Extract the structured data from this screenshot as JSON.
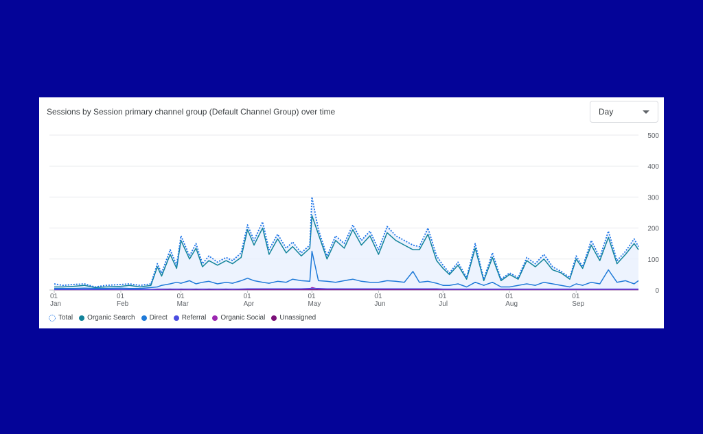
{
  "card": {
    "title": "Sessions by Session primary channel group (Default Channel Group) over time"
  },
  "dropdown": {
    "value": "Day"
  },
  "legend": [
    {
      "label": "Total",
      "color": "#1a73e8",
      "style": "dotted"
    },
    {
      "label": "Organic Search",
      "color": "#12839a",
      "style": "solid"
    },
    {
      "label": "Direct",
      "color": "#1f7ad8",
      "style": "solid"
    },
    {
      "label": "Referral",
      "color": "#4a4de0",
      "style": "solid"
    },
    {
      "label": "Organic Social",
      "color": "#9c27b0",
      "style": "solid"
    },
    {
      "label": "Unassigned",
      "color": "#7b1078",
      "style": "solid"
    }
  ],
  "chart_data": {
    "type": "line",
    "title": "Sessions by Session primary channel group (Default Channel Group) over time",
    "xlabel": "",
    "ylabel": "",
    "ylim": [
      0,
      500
    ],
    "y_ticks": [
      0,
      100,
      200,
      300,
      400,
      500
    ],
    "x_ticks": [
      {
        "day": "01",
        "month": "Jan",
        "date": "2023-01-01"
      },
      {
        "day": "01",
        "month": "Feb",
        "date": "2023-02-01"
      },
      {
        "day": "01",
        "month": "Mar",
        "date": "2023-03-01"
      },
      {
        "day": "01",
        "month": "Apr",
        "date": "2023-04-01"
      },
      {
        "day": "01",
        "month": "May",
        "date": "2023-05-01"
      },
      {
        "day": "01",
        "month": "Jun",
        "date": "2023-06-01"
      },
      {
        "day": "01",
        "month": "Jul",
        "date": "2023-07-01"
      },
      {
        "day": "01",
        "month": "Aug",
        "date": "2023-08-01"
      },
      {
        "day": "01",
        "month": "Sep",
        "date": "2023-09-01"
      }
    ],
    "grid": true,
    "legend_position": "bottom-left",
    "x": [
      "2023-01-01",
      "2023-01-05",
      "2023-01-10",
      "2023-01-15",
      "2023-01-20",
      "2023-01-25",
      "2023-02-01",
      "2023-02-05",
      "2023-02-10",
      "2023-02-15",
      "2023-02-18",
      "2023-02-20",
      "2023-02-24",
      "2023-02-27",
      "2023-03-01",
      "2023-03-05",
      "2023-03-08",
      "2023-03-11",
      "2023-03-14",
      "2023-03-18",
      "2023-03-22",
      "2023-03-25",
      "2023-03-29",
      "2023-04-01",
      "2023-04-04",
      "2023-04-08",
      "2023-04-11",
      "2023-04-15",
      "2023-04-19",
      "2023-04-22",
      "2023-04-26",
      "2023-04-30",
      "2023-05-01",
      "2023-05-04",
      "2023-05-08",
      "2023-05-12",
      "2023-05-16",
      "2023-05-20",
      "2023-05-24",
      "2023-05-28",
      "2023-06-01",
      "2023-06-05",
      "2023-06-09",
      "2023-06-13",
      "2023-06-17",
      "2023-06-20",
      "2023-06-24",
      "2023-06-28",
      "2023-07-01",
      "2023-07-04",
      "2023-07-08",
      "2023-07-12",
      "2023-07-16",
      "2023-07-20",
      "2023-07-24",
      "2023-07-28",
      "2023-08-01",
      "2023-08-05",
      "2023-08-09",
      "2023-08-13",
      "2023-08-17",
      "2023-08-21",
      "2023-08-25",
      "2023-08-29",
      "2023-09-01",
      "2023-09-04",
      "2023-09-08",
      "2023-09-12",
      "2023-09-16",
      "2023-09-20",
      "2023-09-24",
      "2023-09-28",
      "2023-09-30"
    ],
    "series": [
      {
        "name": "Total",
        "values": [
          20,
          15,
          18,
          20,
          10,
          15,
          18,
          20,
          15,
          20,
          85,
          55,
          130,
          80,
          175,
          110,
          150,
          85,
          110,
          90,
          105,
          95,
          120,
          210,
          160,
          220,
          130,
          180,
          135,
          155,
          120,
          145,
          300,
          195,
          110,
          175,
          150,
          210,
          160,
          190,
          130,
          205,
          175,
          160,
          145,
          140,
          200,
          110,
          80,
          55,
          90,
          40,
          150,
          35,
          120,
          35,
          55,
          40,
          105,
          85,
          115,
          75,
          60,
          40,
          110,
          75,
          160,
          105,
          190,
          95,
          125,
          165,
          140
        ]
      },
      {
        "name": "Organic Search",
        "values": [
          10,
          10,
          12,
          15,
          8,
          10,
          12,
          15,
          10,
          15,
          75,
          45,
          115,
          70,
          160,
          100,
          135,
          75,
          95,
          80,
          95,
          85,
          105,
          195,
          145,
          200,
          115,
          165,
          120,
          140,
          110,
          135,
          240,
          180,
          100,
          160,
          135,
          195,
          145,
          175,
          115,
          185,
          160,
          145,
          130,
          130,
          180,
          95,
          70,
          50,
          80,
          35,
          135,
          30,
          105,
          30,
          50,
          35,
          95,
          75,
          100,
          65,
          55,
          35,
          100,
          70,
          145,
          95,
          170,
          85,
          115,
          150,
          130
        ]
      },
      {
        "name": "Direct",
        "values": [
          5,
          5,
          5,
          6,
          5,
          5,
          6,
          5,
          5,
          8,
          10,
          15,
          20,
          25,
          22,
          30,
          20,
          25,
          28,
          20,
          25,
          22,
          30,
          38,
          30,
          25,
          22,
          28,
          25,
          35,
          30,
          28,
          125,
          30,
          28,
          25,
          30,
          35,
          28,
          25,
          25,
          30,
          28,
          25,
          60,
          25,
          28,
          22,
          15,
          15,
          20,
          10,
          25,
          15,
          25,
          10,
          10,
          15,
          20,
          15,
          25,
          20,
          15,
          10,
          20,
          15,
          25,
          20,
          65,
          25,
          30,
          20,
          30
        ]
      },
      {
        "name": "Referral",
        "values": [
          2,
          2,
          2,
          2,
          2,
          2,
          2,
          2,
          2,
          2,
          3,
          3,
          3,
          3,
          3,
          3,
          3,
          3,
          3,
          3,
          3,
          3,
          3,
          4,
          4,
          4,
          4,
          4,
          4,
          4,
          4,
          5,
          5,
          5,
          4,
          4,
          4,
          4,
          4,
          4,
          4,
          4,
          4,
          4,
          4,
          4,
          4,
          4,
          3,
          3,
          3,
          3,
          3,
          3,
          3,
          3,
          3,
          3,
          3,
          3,
          3,
          3,
          3,
          3,
          3,
          3,
          3,
          3,
          3,
          3,
          3,
          3,
          3
        ]
      },
      {
        "name": "Organic Social",
        "values": [
          2,
          2,
          2,
          2,
          2,
          2,
          2,
          2,
          2,
          2,
          2,
          2,
          3,
          2,
          3,
          2,
          3,
          2,
          3,
          2,
          3,
          2,
          3,
          3,
          3,
          3,
          3,
          3,
          3,
          3,
          3,
          3,
          8,
          3,
          3,
          3,
          3,
          3,
          3,
          3,
          3,
          3,
          3,
          3,
          3,
          3,
          3,
          3,
          2,
          2,
          2,
          2,
          2,
          2,
          2,
          2,
          2,
          2,
          2,
          2,
          2,
          2,
          2,
          2,
          2,
          2,
          2,
          2,
          2,
          2,
          2,
          2,
          2
        ]
      },
      {
        "name": "Unassigned",
        "values": [
          1,
          1,
          1,
          1,
          1,
          1,
          1,
          1,
          1,
          1,
          1,
          1,
          1,
          1,
          1,
          1,
          1,
          1,
          1,
          1,
          1,
          1,
          1,
          1,
          1,
          1,
          1,
          1,
          1,
          1,
          1,
          1,
          1,
          1,
          1,
          1,
          1,
          1,
          1,
          1,
          1,
          1,
          1,
          1,
          1,
          1,
          1,
          1,
          1,
          1,
          1,
          1,
          1,
          1,
          1,
          1,
          1,
          1,
          1,
          1,
          1,
          1,
          1,
          1,
          1,
          1,
          1,
          1,
          1,
          1,
          1,
          1,
          1
        ]
      }
    ]
  }
}
